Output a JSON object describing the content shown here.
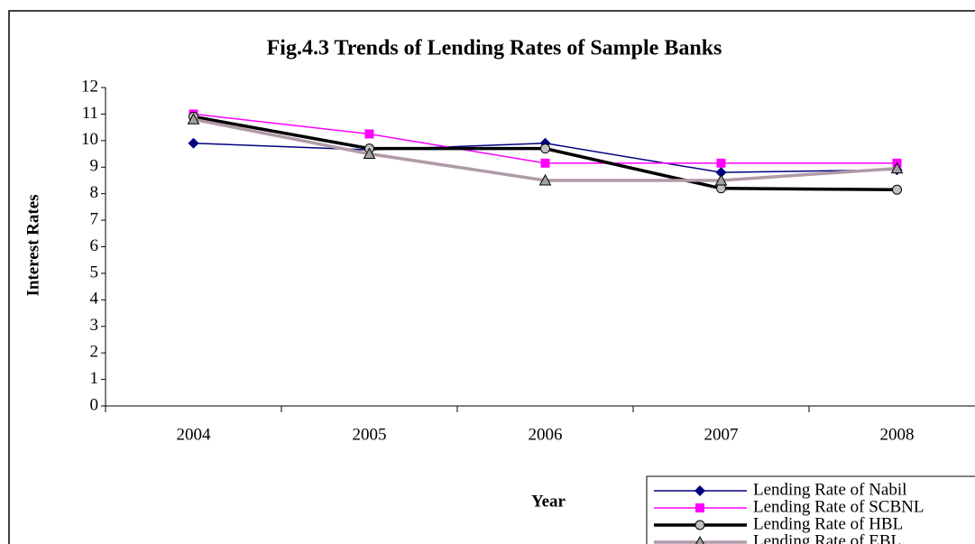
{
  "chart_data": {
    "type": "line",
    "title": "Fig.4.3 Trends of Lending Rates of Sample Banks",
    "xlabel": "Year",
    "ylabel": "Interest Rates",
    "categories": [
      "2004",
      "2005",
      "2006",
      "2007",
      "2008"
    ],
    "series": [
      {
        "name": "Lending Rate of Nabil",
        "color": "#000080",
        "values": [
          9.9,
          9.65,
          9.9,
          8.8,
          8.9
        ]
      },
      {
        "name": "Lending Rate of SCBNL",
        "color": "#ff00ff",
        "values": [
          11.0,
          10.25,
          9.15,
          9.15,
          9.15
        ]
      },
      {
        "name": "Lending Rate of HBL",
        "color": "#000000",
        "values": [
          10.9,
          9.7,
          9.7,
          8.2,
          8.15
        ]
      },
      {
        "name": "Lending Rate of EBL",
        "color": "#b09aa8",
        "values": [
          10.8,
          9.5,
          8.5,
          8.5,
          8.95
        ]
      }
    ],
    "ylim": [
      0,
      12
    ],
    "yticks": [
      0,
      1,
      2,
      3,
      4,
      5,
      6,
      7,
      8,
      9,
      10,
      11,
      12
    ],
    "grid": false,
    "legend": "lower right"
  }
}
